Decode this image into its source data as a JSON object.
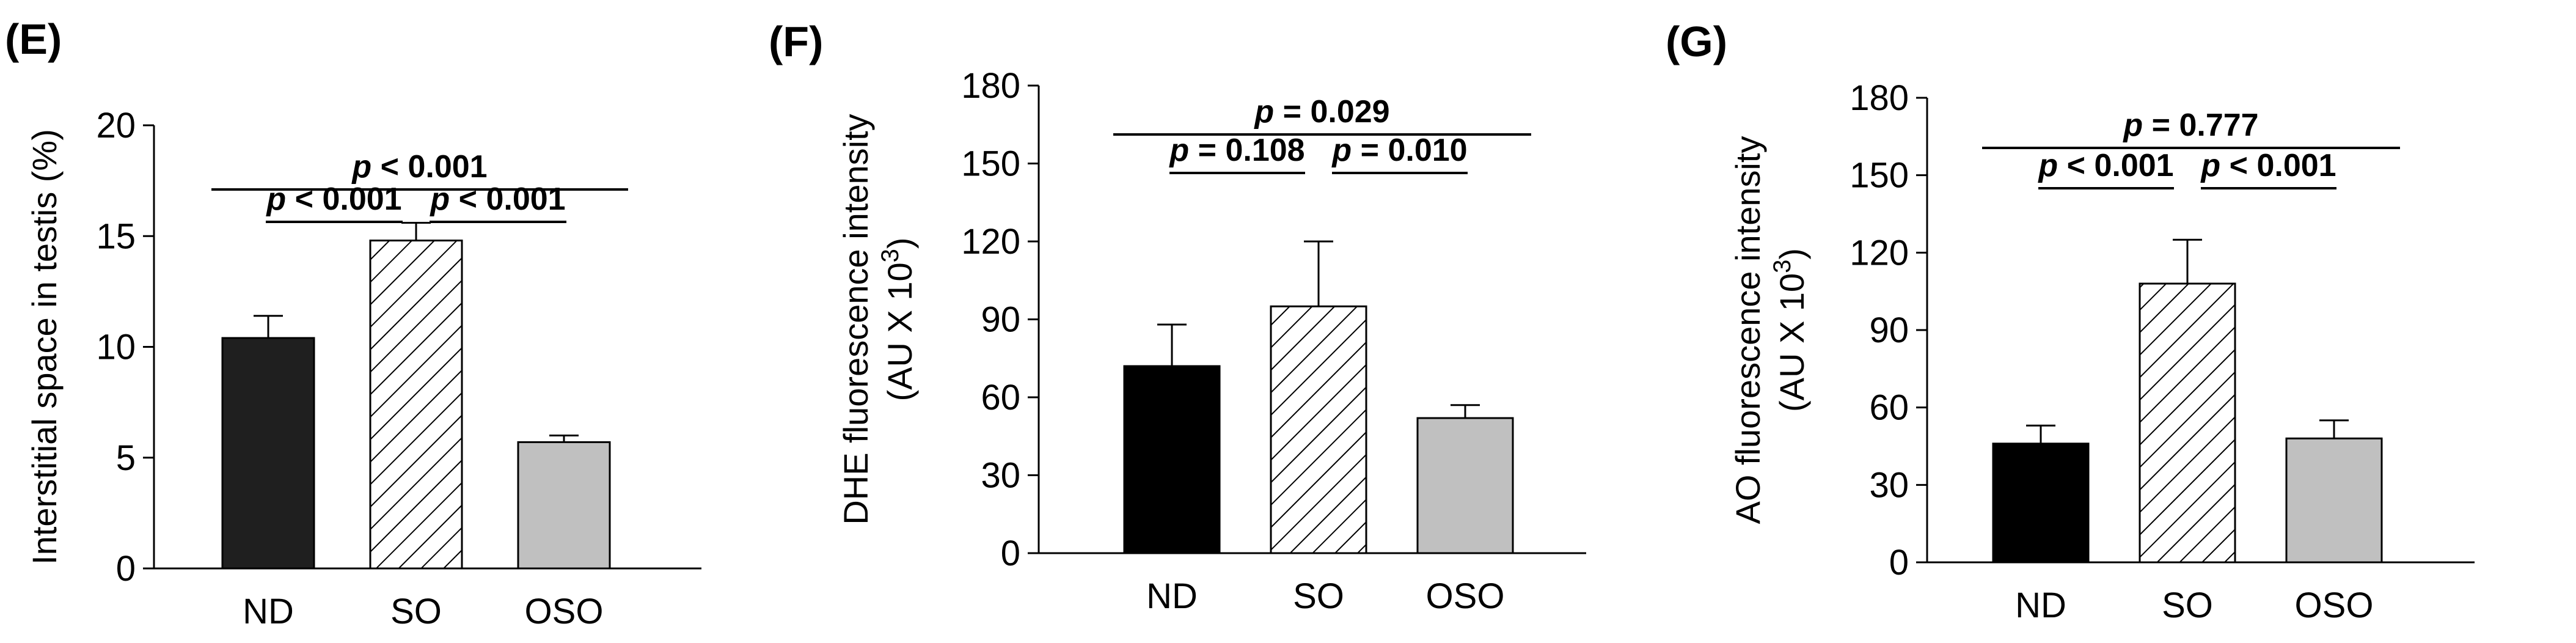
{
  "chart_data": [
    {
      "type": "bar",
      "panel": "(E)",
      "categories": [
        "ND",
        "SO",
        "OSO"
      ],
      "values": [
        10.4,
        14.8,
        5.7
      ],
      "errors": [
        1.0,
        0.8,
        0.3
      ],
      "fills": [
        "#1f1f1f",
        "hatch",
        "#c0c0c0"
      ],
      "ylabel": "Interstitial space in testis (%)",
      "ylabel_lines": [
        "Interstitial space in testis (%)"
      ],
      "ylim": [
        0,
        20
      ],
      "yticks": [
        0,
        5,
        10,
        15,
        20
      ],
      "comparisons": [
        {
          "from": 0,
          "to": 2,
          "level": 2,
          "label": "p < 0.001"
        },
        {
          "from": 0,
          "to": 1,
          "level": 1,
          "label": "p < 0.001"
        },
        {
          "from": 1,
          "to": 2,
          "level": 1,
          "label": "p < 0.001"
        }
      ]
    },
    {
      "type": "bar",
      "panel": "(F)",
      "categories": [
        "ND",
        "SO",
        "OSO"
      ],
      "values": [
        72,
        95,
        52
      ],
      "errors": [
        16,
        25,
        5
      ],
      "fills": [
        "#000000",
        "hatch",
        "#c0c0c0"
      ],
      "ylabel": "DHE fluorescence intensity (AU X 10^3)",
      "ylabel_lines": [
        "DHE fluorescence intensity",
        "(AU X 10",
        "3",
        ")"
      ],
      "ylim": [
        0,
        180
      ],
      "yticks": [
        0,
        30,
        60,
        90,
        120,
        150,
        180
      ],
      "comparisons": [
        {
          "from": 0,
          "to": 2,
          "level": 2,
          "label": "p = 0.029"
        },
        {
          "from": 0,
          "to": 1,
          "level": 1,
          "label": "p = 0.108"
        },
        {
          "from": 1,
          "to": 2,
          "level": 1,
          "label": "p = 0.010"
        }
      ]
    },
    {
      "type": "bar",
      "panel": "(G)",
      "categories": [
        "ND",
        "SO",
        "OSO"
      ],
      "values": [
        46,
        108,
        48
      ],
      "errors": [
        7,
        17,
        7
      ],
      "fills": [
        "#000000",
        "hatch",
        "#c0c0c0"
      ],
      "ylabel": "AO fluorescence intensity (AU X 10^3)",
      "ylabel_lines": [
        "AO fluorescence intensity",
        "(AU X 10",
        "3",
        ")"
      ],
      "ylim": [
        0,
        180
      ],
      "yticks": [
        0,
        30,
        60,
        90,
        120,
        150,
        180
      ],
      "comparisons": [
        {
          "from": 0,
          "to": 2,
          "level": 2,
          "label": "p = 0.777"
        },
        {
          "from": 0,
          "to": 1,
          "level": 1,
          "label": "p < 0.001"
        },
        {
          "from": 1,
          "to": 2,
          "level": 1,
          "label": "p < 0.001"
        }
      ]
    }
  ]
}
